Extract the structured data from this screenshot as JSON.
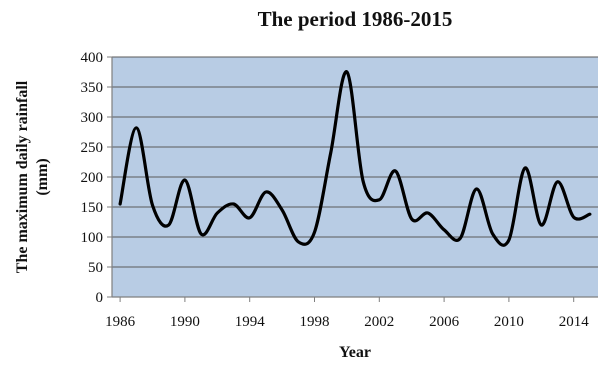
{
  "colors": {
    "plot_background": "#b8cce4",
    "line": "#000000",
    "grid": "#5a5a5a",
    "axis": "#7f7f7f"
  },
  "chart_data": {
    "type": "line",
    "title": "The period 1986-2015",
    "xlabel": "Year",
    "ylabel_lines": [
      "The maximum  daily rainfall",
      "(mm)"
    ],
    "x": [
      1986,
      1987,
      1988,
      1989,
      1990,
      1991,
      1992,
      1993,
      1994,
      1995,
      1996,
      1997,
      1998,
      1999,
      2000,
      2001,
      2002,
      2003,
      2004,
      2005,
      2006,
      2007,
      2008,
      2009,
      2010,
      2011,
      2012,
      2013,
      2014,
      2015
    ],
    "series": [
      {
        "values": [
          155,
          282,
          153,
          120,
          195,
          105,
          140,
          155,
          132,
          175,
          145,
          92,
          108,
          240,
          375,
          193,
          162,
          210,
          130,
          140,
          112,
          98,
          180,
          105,
          95,
          215,
          120,
          192,
          133,
          138
        ]
      }
    ],
    "xticks": [
      "1986",
      "1990",
      "1994",
      "1998",
      "2002",
      "2006",
      "2010",
      "2014"
    ],
    "xtick_values": [
      1986,
      1990,
      1994,
      1998,
      2002,
      2006,
      2010,
      2014
    ],
    "yticks": [
      0,
      50,
      100,
      150,
      200,
      250,
      300,
      350,
      400
    ],
    "xlim": [
      1985.5,
      2015.5
    ],
    "ylim": [
      0,
      400
    ],
    "grid": true,
    "legend": "none"
  }
}
